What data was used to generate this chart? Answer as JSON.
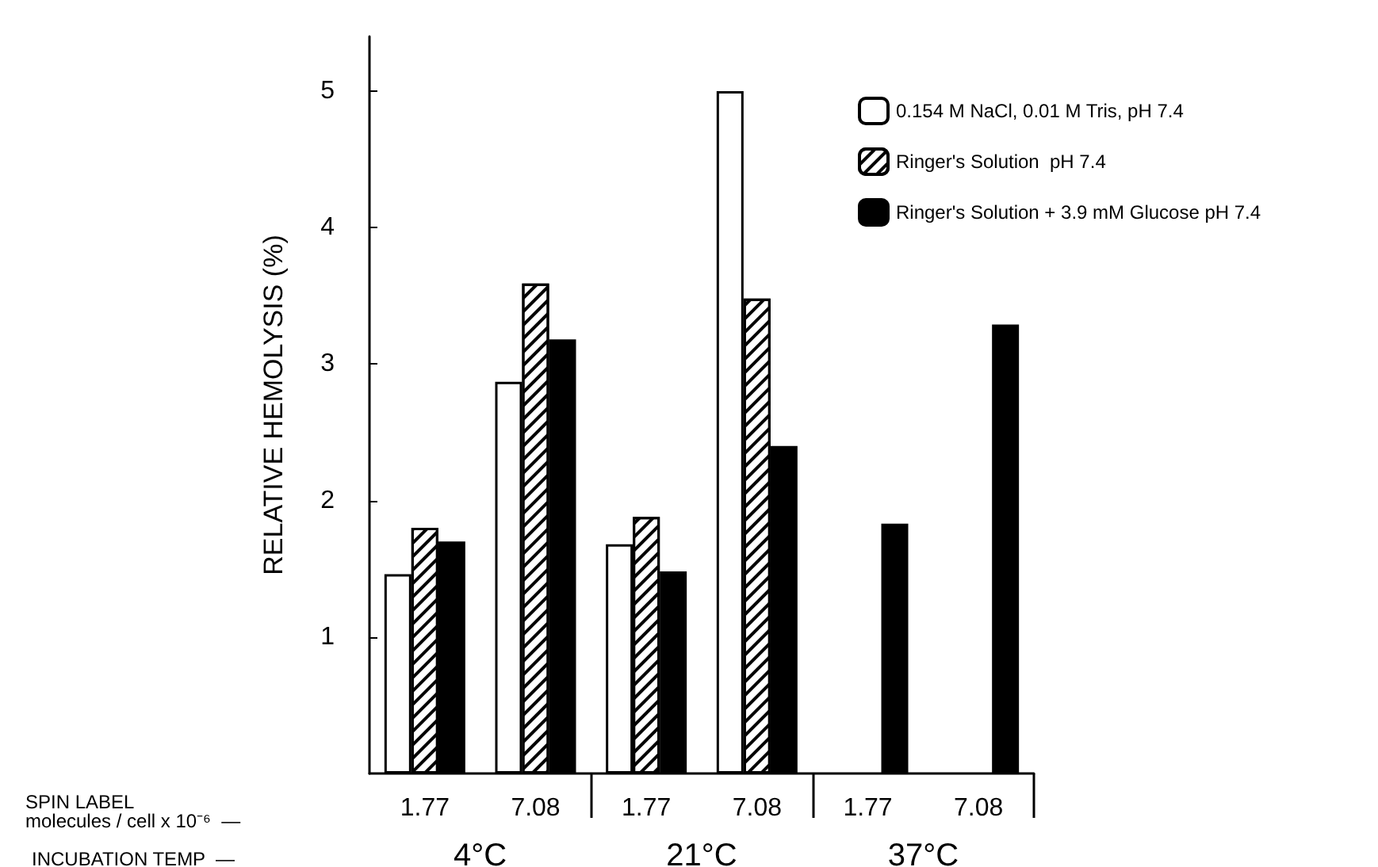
{
  "chart_data": {
    "type": "bar",
    "ylabel": "RELATIVE HEMOLYSIS (%)",
    "xlabel": "SPIN LABEL\nmolecules / cell x 10⁻⁶  —",
    "categories": [
      "1.77",
      "7.08",
      "1.77",
      "7.08",
      "1.77",
      "7.08"
    ],
    "series": [
      {
        "name": "0.154 M NaCl, 0.01 M Tris, pH 7.4",
        "color": "#ffffff",
        "values": [
          1.46,
          2.87,
          1.68,
          5.0,
          null,
          null
        ]
      },
      {
        "name": "Ringer's Solution  pH 7.4",
        "color": "#ffffff",
        "values": [
          1.8,
          3.59,
          1.88,
          3.48,
          null,
          null
        ]
      },
      {
        "name": "Ringer's Solution + 3.9 mM Glucose pH 7.4",
        "color": "#000000",
        "values": [
          1.7,
          3.18,
          1.48,
          2.4,
          1.83,
          3.29
        ]
      }
    ],
    "annotations": [
      "INCUBATION TEMP  —",
      "4°C",
      "21°C",
      "37°C"
    ],
    "ylim": [
      0,
      5.4
    ],
    "yticks": [
      1,
      2,
      3,
      4,
      5
    ],
    "grid": false,
    "legend": "top right"
  }
}
